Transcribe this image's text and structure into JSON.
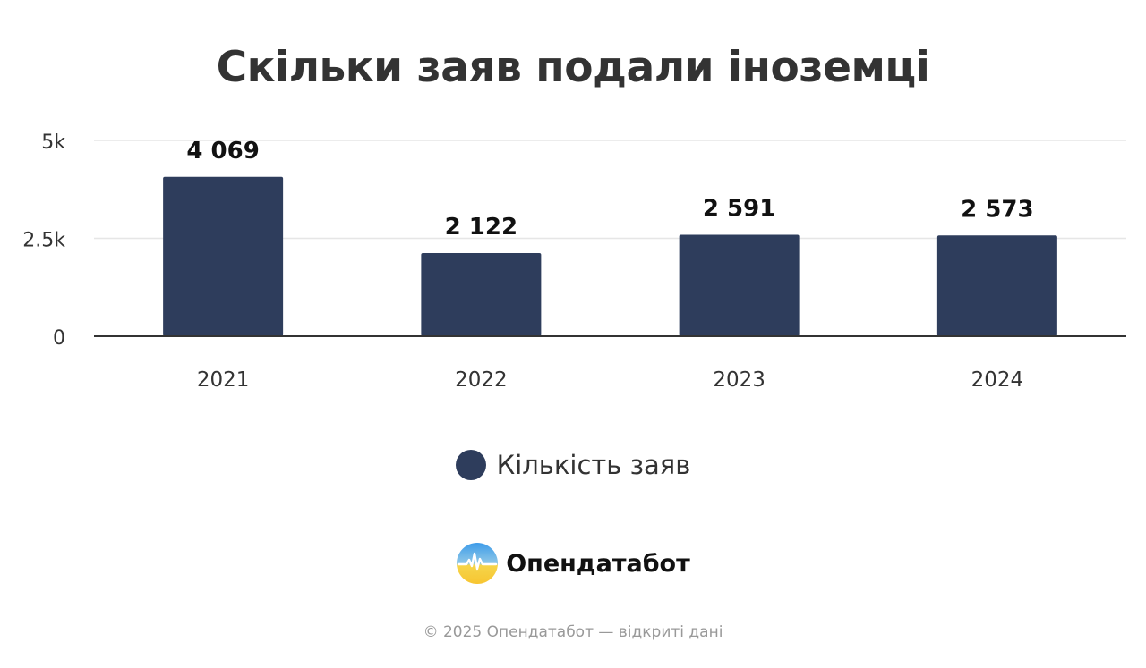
{
  "chart_data": {
    "type": "bar",
    "title": "Скільки заяв подали іноземці",
    "categories": [
      "2021",
      "2022",
      "2023",
      "2024"
    ],
    "series": [
      {
        "name": "Кількість заяв",
        "values": [
          4069,
          2122,
          2591,
          2573
        ]
      }
    ],
    "data_labels": [
      "4 069",
      "2 122",
      "2 591",
      "2 573"
    ],
    "y_ticks": [
      0,
      2500,
      5000
    ],
    "y_tick_labels": [
      "0",
      "2.5k",
      "5k"
    ],
    "ylim": [
      0,
      5000
    ],
    "xlabel": "",
    "ylabel": "",
    "grid": true,
    "legend_position": "bottom-center"
  },
  "colors": {
    "bar": "#2e3d5c",
    "grid": "#e6e6e6",
    "axis": "#333333",
    "title": "#333333",
    "footer": "#999999"
  },
  "brand": {
    "name": "Опендатабот",
    "logo_icon": "opendatabot-logo-icon"
  },
  "footer": {
    "text": "© 2025 Опендатабот — відкриті дані"
  }
}
